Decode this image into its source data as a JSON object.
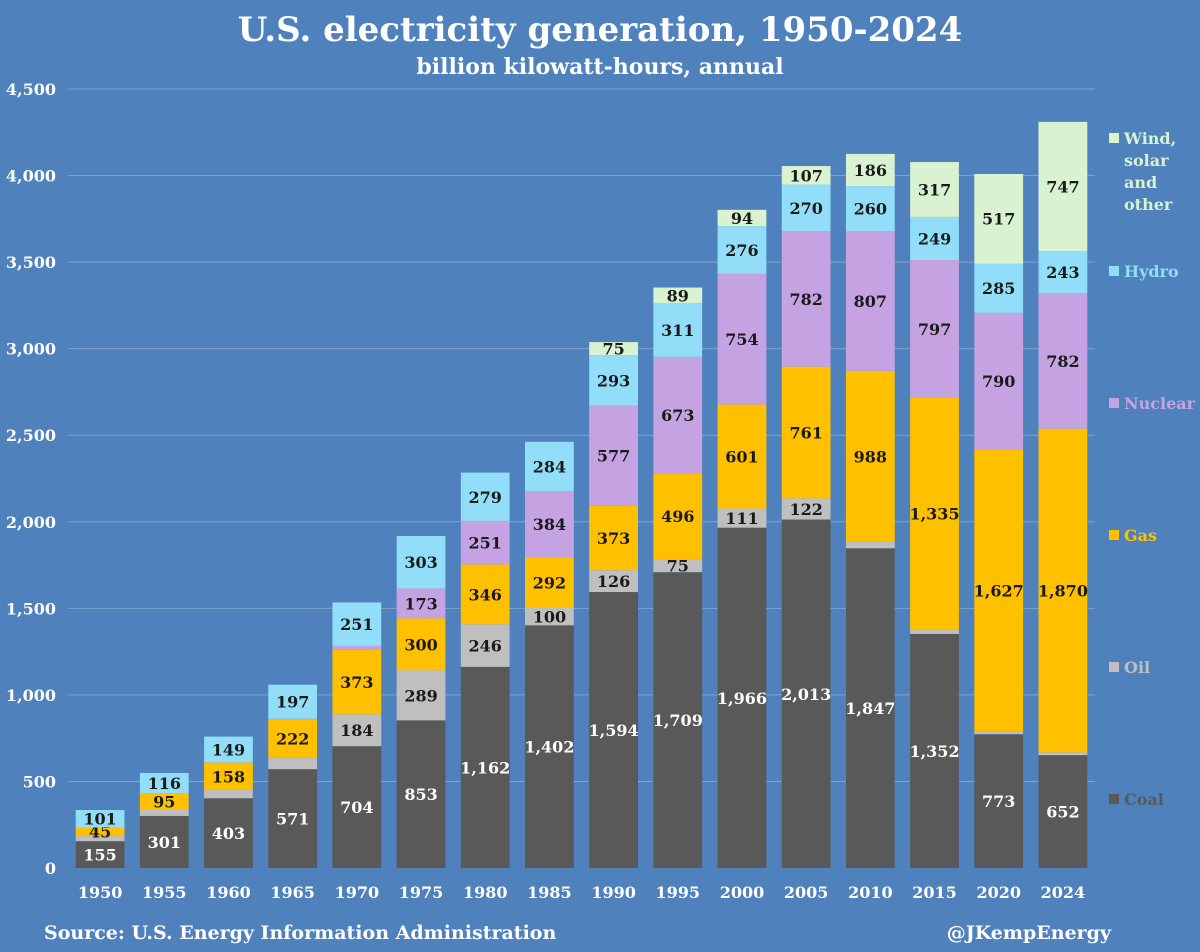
{
  "header": {
    "title": "U.S. electricity generation, 1950-2024",
    "subtitle": "billion kilowatt-hours, annual"
  },
  "footer": {
    "source": "Source: U.S. Energy Information Administration",
    "credit": "@JKempEnergy"
  },
  "chart_data": {
    "type": "bar",
    "stacked": true,
    "title": "U.S. electricity generation, 1950-2024",
    "subtitle": "billion kilowatt-hours, annual",
    "xlabel": "",
    "ylabel": "",
    "ylim": [
      0,
      4500
    ],
    "yticks": [
      0,
      500,
      1000,
      1500,
      2000,
      2500,
      3000,
      3500,
      4000,
      4500
    ],
    "ytick_labels": [
      "0",
      "500",
      "1,000",
      "1,500",
      "2,000",
      "2,500",
      "3,000",
      "3,500",
      "4,000",
      "4,500"
    ],
    "grid": true,
    "legend_position": "right",
    "categories": [
      "1950",
      "1955",
      "1960",
      "1965",
      "1970",
      "1975",
      "1980",
      "1985",
      "1990",
      "1995",
      "2000",
      "2005",
      "2010",
      "2015",
      "2020",
      "2024"
    ],
    "series": [
      {
        "name": "Coal",
        "color": "#595959",
        "values": [
          155,
          301,
          403,
          571,
          704,
          853,
          1162,
          1402,
          1594,
          1709,
          1966,
          2013,
          1847,
          1352,
          773,
          652
        ],
        "labels": [
          "155",
          "301",
          "403",
          "571",
          "704",
          "853",
          "1,162",
          "1,402",
          "1,594",
          "1,709",
          "1,966",
          "2,013",
          "1,847",
          "1,352",
          "773",
          "652"
        ]
      },
      {
        "name": "Oil",
        "color": "#bfbfbf",
        "values": [
          34,
          37,
          48,
          65,
          184,
          289,
          246,
          100,
          126,
          75,
          111,
          122,
          37,
          28,
          17,
          16
        ],
        "labels": [
          "",
          "",
          "",
          "",
          "184",
          "289",
          "246",
          "100",
          "126",
          "75",
          "111",
          "122",
          "",
          "",
          "",
          ""
        ]
      },
      {
        "name": "Gas",
        "color": "#ffc000",
        "values": [
          45,
          95,
          158,
          222,
          373,
          300,
          346,
          292,
          373,
          496,
          601,
          761,
          988,
          1335,
          1627,
          1870
        ],
        "labels": [
          "45",
          "95",
          "158",
          "222",
          "373",
          "300",
          "346",
          "292",
          "373",
          "496",
          "601",
          "761",
          "988",
          "1,335",
          "1,627",
          "1,870"
        ]
      },
      {
        "name": "Nuclear",
        "color": "#c5a3e3",
        "values": [
          0,
          0,
          1,
          4,
          22,
          173,
          251,
          384,
          577,
          673,
          754,
          782,
          807,
          797,
          790,
          782
        ],
        "labels": [
          "",
          "",
          "",
          "",
          "",
          "173",
          "251",
          "384",
          "577",
          "673",
          "754",
          "782",
          "807",
          "797",
          "790",
          "782"
        ]
      },
      {
        "name": "Hydro",
        "color": "#92ddf8",
        "values": [
          101,
          116,
          149,
          197,
          251,
          303,
          279,
          284,
          293,
          311,
          276,
          270,
          260,
          249,
          285,
          243
        ],
        "labels": [
          "101",
          "116",
          "149",
          "197",
          "251",
          "303",
          "279",
          "284",
          "293",
          "311",
          "276",
          "270",
          "260",
          "249",
          "285",
          "243"
        ]
      },
      {
        "name": "Wind, solar and other",
        "color": "#d9f2d0",
        "values": [
          0,
          0,
          0,
          0,
          0,
          0,
          0,
          0,
          75,
          89,
          94,
          107,
          186,
          317,
          517,
          747
        ],
        "labels": [
          "",
          "",
          "",
          "",
          "",
          "",
          "",
          "",
          "75",
          "89",
          "94",
          "107",
          "186",
          "317",
          "517",
          "747"
        ]
      }
    ],
    "legend": [
      {
        "series": "Wind, solar and other",
        "lines": [
          "Wind,",
          "solar",
          "and",
          "other"
        ]
      },
      {
        "series": "Hydro",
        "lines": [
          "Hydro"
        ]
      },
      {
        "series": "Nuclear",
        "lines": [
          "Nuclear"
        ]
      },
      {
        "series": "Gas",
        "lines": [
          "Gas"
        ]
      },
      {
        "series": "Oil",
        "lines": [
          "Oil"
        ]
      },
      {
        "series": "Coal",
        "lines": [
          "Coal"
        ]
      }
    ],
    "colors": {
      "background": "#4f81bd",
      "gridline": "#7fa3d0",
      "light_label_text": "#ffffff",
      "dark_label_text": "#1a1a1a"
    }
  }
}
